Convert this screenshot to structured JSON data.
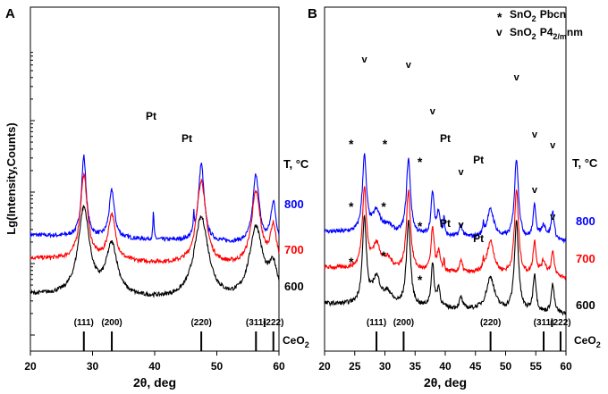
{
  "figure": {
    "y_axis_label": "Lg(Intensity,Counts)",
    "temp_header": "T, °C",
    "temperatures": [
      "800",
      "700",
      "600"
    ],
    "temp_colors": [
      "#0000ff",
      "#ff0000",
      "#000000"
    ],
    "pt_label": "Pt",
    "asterisk": "*",
    "v_mark": "v"
  },
  "legend": {
    "pbcn_symbol": "*",
    "pbcn_label": "SnO",
    "pbcn_sub": "2",
    "pbcn_phase": "Pbcn",
    "p4_symbol": "v",
    "p4_label": "SnO",
    "p4_sub": "2",
    "p4_phase": "P4",
    "p4_phase_sub": "2/m",
    "p4_phase_tail": "nm"
  },
  "ceo2": {
    "label": "CeO",
    "label_sub": "2",
    "reflections": [
      {
        "hkl": "(111)",
        "two_theta": 28.6
      },
      {
        "hkl": "(200)",
        "two_theta": 33.1
      },
      {
        "hkl": "(220)",
        "two_theta": 47.5
      },
      {
        "hkl": "(311)",
        "two_theta": 56.3
      },
      {
        "hkl": "(222)",
        "two_theta": 59.1
      }
    ]
  },
  "chart_data": [
    {
      "type": "line",
      "panel": "A",
      "xlabel": "2θ, deg",
      "ylabel": "Lg(Intensity,Counts)",
      "xlim": [
        20,
        60
      ],
      "x_ticks": [
        20,
        30,
        40,
        50,
        60
      ],
      "series": [
        {
          "name": "800",
          "color": "#0000ff",
          "baseline": 0.72,
          "peaks": [
            [
              28.6,
              0.88,
              0.45
            ],
            [
              33.1,
              0.52,
              0.5
            ],
            [
              39.8,
              0.32,
              0.09
            ],
            [
              46.3,
              0.2,
              0.09
            ],
            [
              47.5,
              0.85,
              0.55
            ],
            [
              56.3,
              0.75,
              0.6
            ],
            [
              59.1,
              0.45,
              0.5
            ]
          ]
        },
        {
          "name": "700",
          "color": "#ff0000",
          "baseline": 0.58,
          "peaks": [
            [
              28.6,
              0.92,
              0.7
            ],
            [
              33.1,
              0.5,
              0.7
            ],
            [
              47.5,
              0.92,
              0.9
            ],
            [
              56.3,
              0.8,
              0.9
            ],
            [
              59.1,
              0.42,
              0.6
            ]
          ]
        },
        {
          "name": "600",
          "color": "#000000",
          "baseline": 0.36,
          "peaks": [
            [
              28.6,
              0.95,
              1.1
            ],
            [
              33.1,
              0.55,
              1.1
            ],
            [
              47.5,
              0.9,
              1.4
            ],
            [
              56.3,
              0.8,
              1.3
            ],
            [
              59.1,
              0.35,
              0.9
            ]
          ]
        }
      ],
      "annotations": [
        {
          "text": "Pt",
          "x": 39.8
        },
        {
          "text": "Pt",
          "x": 46.3
        }
      ]
    },
    {
      "type": "line",
      "panel": "B",
      "xlabel": "2θ, deg",
      "ylabel": "",
      "xlim": [
        20,
        60
      ],
      "x_ticks": [
        20,
        25,
        30,
        35,
        40,
        45,
        50,
        55,
        60
      ],
      "series": [
        {
          "name": "800",
          "color": "#0000ff",
          "baseline": 0.78,
          "peaks": [
            [
              26.6,
              0.8,
              0.4
            ],
            [
              28.6,
              0.22,
              0.8
            ],
            [
              30.5,
              0.08,
              0.8
            ],
            [
              33.9,
              0.8,
              0.4
            ],
            [
              37.9,
              0.45,
              0.3
            ],
            [
              38.9,
              0.25,
              0.3
            ],
            [
              39.8,
              0.2,
              0.1
            ],
            [
              42.6,
              0.12,
              0.3
            ],
            [
              46.3,
              0.12,
              0.1
            ],
            [
              47.5,
              0.3,
              0.7
            ],
            [
              51.8,
              0.85,
              0.4
            ],
            [
              54.8,
              0.35,
              0.3
            ],
            [
              56.3,
              0.15,
              0.5
            ],
            [
              57.8,
              0.3,
              0.3
            ]
          ]
        },
        {
          "name": "700",
          "color": "#ff0000",
          "baseline": 0.57,
          "peaks": [
            [
              26.6,
              0.85,
              0.4
            ],
            [
              28.6,
              0.25,
              0.8
            ],
            [
              30.5,
              0.1,
              0.8
            ],
            [
              33.9,
              0.85,
              0.4
            ],
            [
              37.9,
              0.45,
              0.3
            ],
            [
              38.9,
              0.2,
              0.3
            ],
            [
              39.8,
              0.12,
              0.1
            ],
            [
              42.6,
              0.12,
              0.3
            ],
            [
              46.3,
              0.1,
              0.1
            ],
            [
              47.5,
              0.35,
              0.7
            ],
            [
              51.8,
              0.9,
              0.4
            ],
            [
              54.8,
              0.35,
              0.3
            ],
            [
              56.3,
              0.15,
              0.5
            ],
            [
              57.8,
              0.25,
              0.3
            ]
          ]
        },
        {
          "name": "600",
          "color": "#000000",
          "baseline": 0.36,
          "peaks": [
            [
              26.6,
              0.9,
              0.4
            ],
            [
              28.6,
              0.28,
              0.8
            ],
            [
              30.5,
              0.12,
              0.8
            ],
            [
              33.9,
              0.9,
              0.4
            ],
            [
              37.9,
              0.45,
              0.3
            ],
            [
              38.9,
              0.2,
              0.3
            ],
            [
              42.6,
              0.12,
              0.3
            ],
            [
              47.5,
              0.35,
              0.8
            ],
            [
              51.8,
              0.95,
              0.4
            ],
            [
              54.8,
              0.4,
              0.3
            ],
            [
              57.8,
              0.3,
              0.3
            ]
          ]
        }
      ],
      "annotations": [
        {
          "text": "Pt",
          "x": 39.8
        },
        {
          "text": "Pt",
          "x": 46.3
        }
      ]
    }
  ]
}
